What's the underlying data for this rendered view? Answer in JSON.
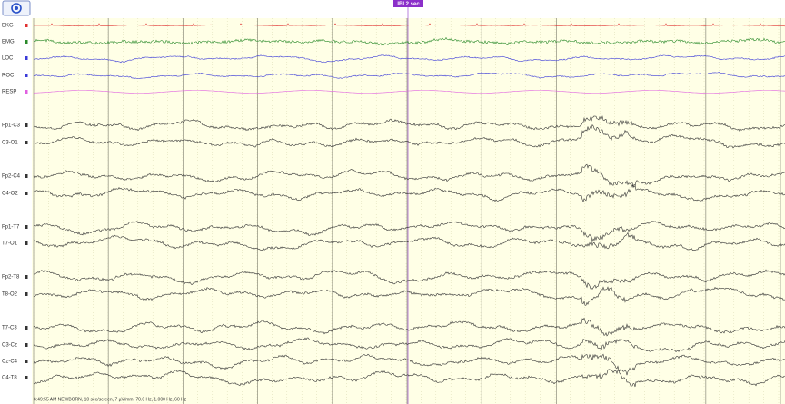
{
  "marker": "IBI 2 sec",
  "footer": "6:49:55 AM NEWBORN, 10 sec/screen, 7 µV/mm, 70.0 Hz, 1.000 Hz, 60 Hz",
  "channels": [
    {
      "label": "EKG",
      "color": "#e03030"
    },
    {
      "label": "EMG",
      "color": "#2a8a2a"
    },
    {
      "label": "LOC",
      "color": "#3a3ad8"
    },
    {
      "label": "ROC",
      "color": "#3a3ad8"
    },
    {
      "label": "RESP",
      "color": "#e060e0"
    },
    {
      "label": "Fp1-C3",
      "color": "#333333"
    },
    {
      "label": "C3-O1",
      "color": "#333333"
    },
    {
      "label": "Fp2-C4",
      "color": "#333333"
    },
    {
      "label": "C4-O2",
      "color": "#333333"
    },
    {
      "label": "Fp1-T7",
      "color": "#333333"
    },
    {
      "label": "T7-O1",
      "color": "#333333"
    },
    {
      "label": "Fp2-T8",
      "color": "#333333"
    },
    {
      "label": "T8-O2",
      "color": "#333333"
    },
    {
      "label": "T7-C3",
      "color": "#333333"
    },
    {
      "label": "C3-Cz",
      "color": "#333333"
    },
    {
      "label": "Cz-C4",
      "color": "#333333"
    },
    {
      "label": "C4-T8",
      "color": "#333333"
    }
  ]
}
